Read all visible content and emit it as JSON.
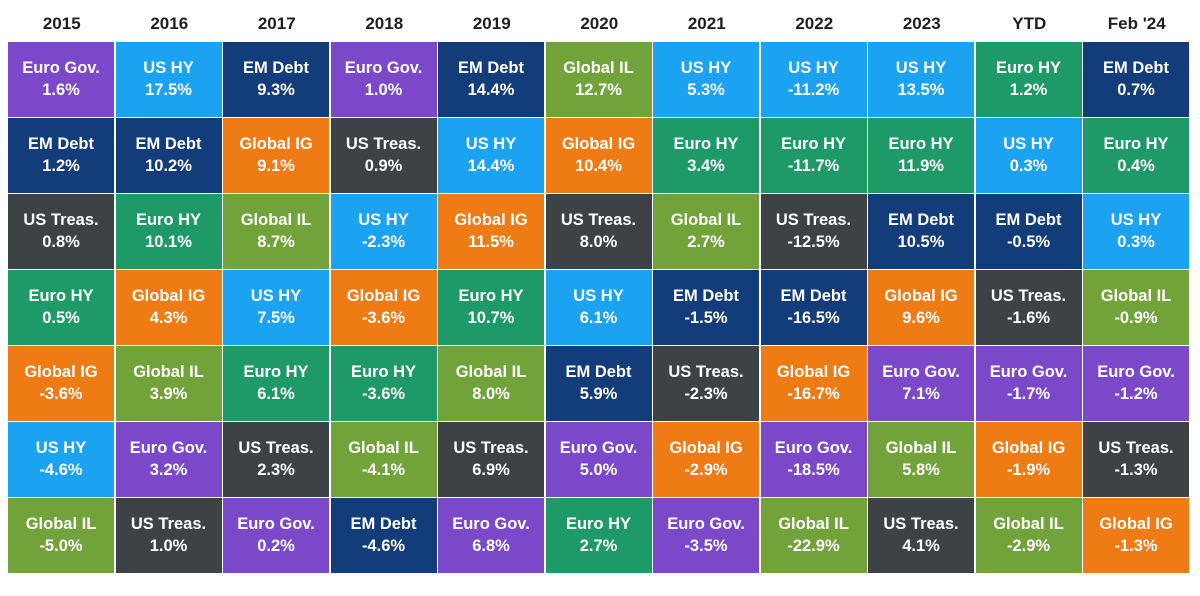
{
  "chart_data": {
    "type": "table",
    "columns": [
      "2015",
      "2016",
      "2017",
      "2018",
      "2019",
      "2020",
      "2021",
      "2022",
      "2023",
      "YTD",
      "Feb '24"
    ],
    "colors": {
      "Euro Gov.": "#7a48c8",
      "US HY": "#1ba3f2",
      "EM Debt": "#123c7a",
      "Global IL": "#72a33a",
      "US Treas.": "#3d4247",
      "Global IG": "#ef7b14",
      "Euro HY": "#1e9a68"
    },
    "cells": [
      [
        {
          "name": "Euro Gov.",
          "value": "1.6%"
        },
        {
          "name": "EM Debt",
          "value": "1.2%"
        },
        {
          "name": "US Treas.",
          "value": "0.8%"
        },
        {
          "name": "Euro HY",
          "value": "0.5%"
        },
        {
          "name": "Global IG",
          "value": "-3.6%"
        },
        {
          "name": "US HY",
          "value": "-4.6%"
        },
        {
          "name": "Global IL",
          "value": "-5.0%"
        }
      ],
      [
        {
          "name": "US HY",
          "value": "17.5%"
        },
        {
          "name": "EM Debt",
          "value": "10.2%"
        },
        {
          "name": "Euro HY",
          "value": "10.1%"
        },
        {
          "name": "Global IG",
          "value": "4.3%"
        },
        {
          "name": "Global IL",
          "value": "3.9%"
        },
        {
          "name": "Euro Gov.",
          "value": "3.2%"
        },
        {
          "name": "US Treas.",
          "value": "1.0%"
        }
      ],
      [
        {
          "name": "EM Debt",
          "value": "9.3%"
        },
        {
          "name": "Global IG",
          "value": "9.1%"
        },
        {
          "name": "Global IL",
          "value": "8.7%"
        },
        {
          "name": "US HY",
          "value": "7.5%"
        },
        {
          "name": "Euro HY",
          "value": "6.1%"
        },
        {
          "name": "US Treas.",
          "value": "2.3%"
        },
        {
          "name": "Euro Gov.",
          "value": "0.2%"
        }
      ],
      [
        {
          "name": "Euro Gov.",
          "value": "1.0%"
        },
        {
          "name": "US Treas.",
          "value": "0.9%"
        },
        {
          "name": "US HY",
          "value": "-2.3%"
        },
        {
          "name": "Global IG",
          "value": "-3.6%"
        },
        {
          "name": "Euro HY",
          "value": "-3.6%"
        },
        {
          "name": "Global IL",
          "value": "-4.1%"
        },
        {
          "name": "EM Debt",
          "value": "-4.6%"
        }
      ],
      [
        {
          "name": "EM Debt",
          "value": "14.4%"
        },
        {
          "name": "US HY",
          "value": "14.4%"
        },
        {
          "name": "Global IG",
          "value": "11.5%"
        },
        {
          "name": "Euro HY",
          "value": "10.7%"
        },
        {
          "name": "Global IL",
          "value": "8.0%"
        },
        {
          "name": "US Treas.",
          "value": "6.9%"
        },
        {
          "name": "Euro Gov.",
          "value": "6.8%"
        }
      ],
      [
        {
          "name": "Global IL",
          "value": "12.7%"
        },
        {
          "name": "Global IG",
          "value": "10.4%"
        },
        {
          "name": "US Treas.",
          "value": "8.0%"
        },
        {
          "name": "US HY",
          "value": "6.1%"
        },
        {
          "name": "EM Debt",
          "value": "5.9%"
        },
        {
          "name": "Euro Gov.",
          "value": "5.0%"
        },
        {
          "name": "Euro HY",
          "value": "2.7%"
        }
      ],
      [
        {
          "name": "US HY",
          "value": "5.3%"
        },
        {
          "name": "Euro HY",
          "value": "3.4%"
        },
        {
          "name": "Global IL",
          "value": "2.7%"
        },
        {
          "name": "EM Debt",
          "value": "-1.5%"
        },
        {
          "name": "US Treas.",
          "value": "-2.3%"
        },
        {
          "name": "Global IG",
          "value": "-2.9%"
        },
        {
          "name": "Euro Gov.",
          "value": "-3.5%"
        }
      ],
      [
        {
          "name": "US HY",
          "value": "-11.2%"
        },
        {
          "name": "Euro HY",
          "value": "-11.7%"
        },
        {
          "name": "US Treas.",
          "value": "-12.5%"
        },
        {
          "name": "EM Debt",
          "value": "-16.5%"
        },
        {
          "name": "Global IG",
          "value": "-16.7%"
        },
        {
          "name": "Euro Gov.",
          "value": "-18.5%"
        },
        {
          "name": "Global IL",
          "value": "-22.9%"
        }
      ],
      [
        {
          "name": "US HY",
          "value": "13.5%"
        },
        {
          "name": "Euro HY",
          "value": "11.9%"
        },
        {
          "name": "EM Debt",
          "value": "10.5%"
        },
        {
          "name": "Global IG",
          "value": "9.6%"
        },
        {
          "name": "Euro Gov.",
          "value": "7.1%"
        },
        {
          "name": "Global IL",
          "value": "5.8%"
        },
        {
          "name": "US Treas.",
          "value": "4.1%"
        }
      ],
      [
        {
          "name": "Euro HY",
          "value": "1.2%"
        },
        {
          "name": "US HY",
          "value": "0.3%"
        },
        {
          "name": "EM Debt",
          "value": "-0.5%"
        },
        {
          "name": "US Treas.",
          "value": "-1.6%"
        },
        {
          "name": "Euro Gov.",
          "value": "-1.7%"
        },
        {
          "name": "Global IG",
          "value": "-1.9%"
        },
        {
          "name": "Global IL",
          "value": "-2.9%"
        }
      ],
      [
        {
          "name": "EM Debt",
          "value": "0.7%"
        },
        {
          "name": "Euro HY",
          "value": "0.4%"
        },
        {
          "name": "US HY",
          "value": "0.3%"
        },
        {
          "name": "Global IL",
          "value": "-0.9%"
        },
        {
          "name": "Euro Gov.",
          "value": "-1.2%"
        },
        {
          "name": "US Treas.",
          "value": "-1.3%"
        },
        {
          "name": "Global IG",
          "value": "-1.3%"
        }
      ]
    ]
  }
}
